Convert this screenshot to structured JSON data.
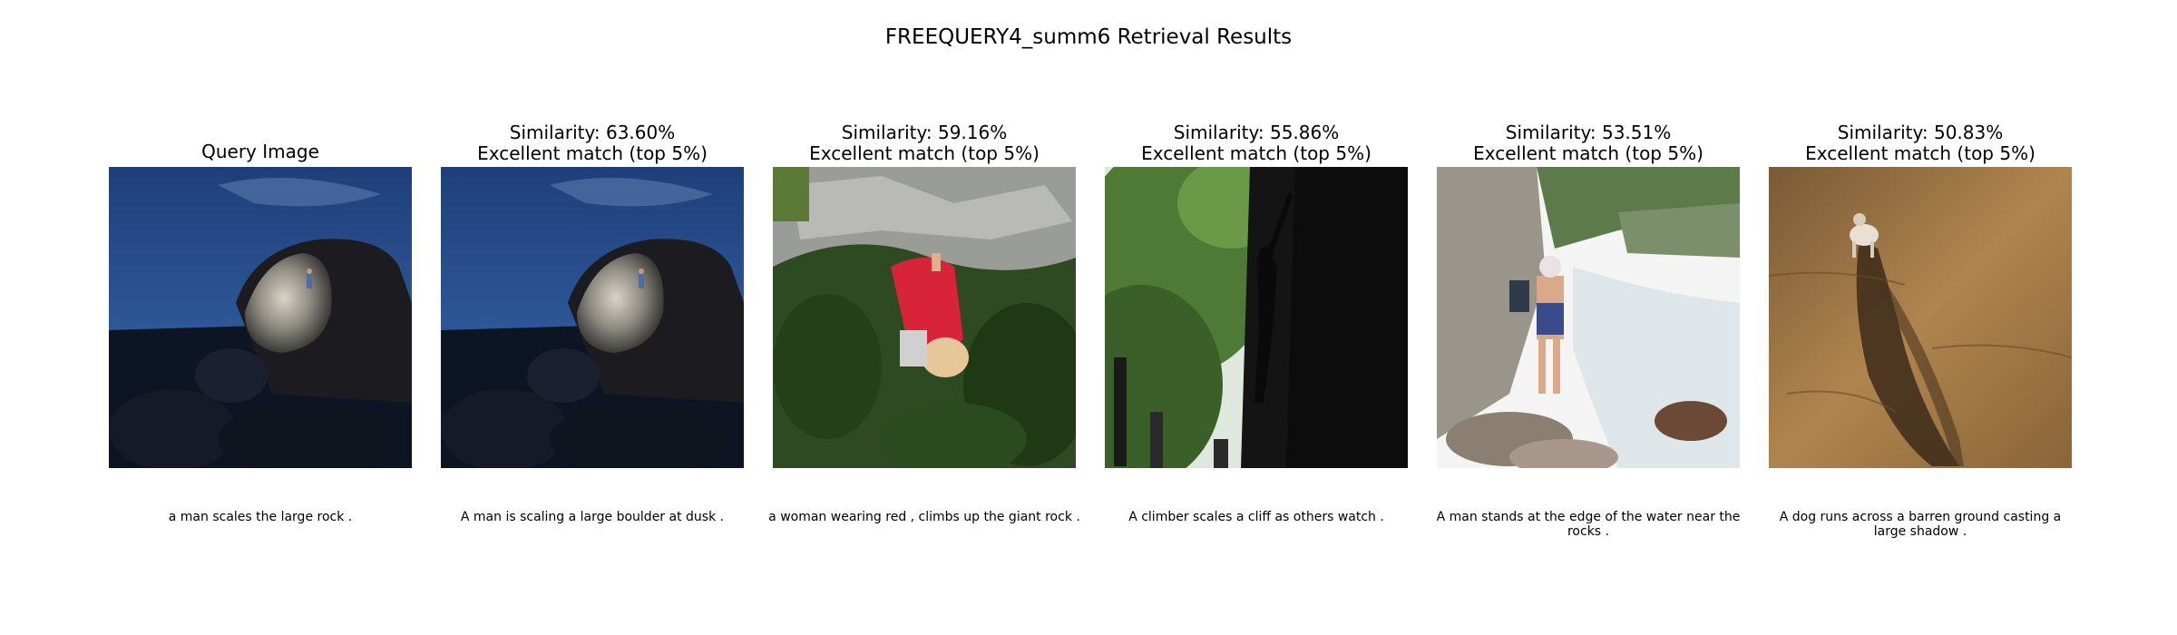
{
  "figure": {
    "title": "FREEQUERY4_summ6 Retrieval Results"
  },
  "query": {
    "title": "Query Image",
    "caption": "a man scales the large rock ."
  },
  "results": [
    {
      "similarity": "Similarity: 63.60%",
      "match": "Excellent match (top 5%)",
      "caption": "A man is scaling a large boulder at dusk ."
    },
    {
      "similarity": "Similarity: 59.16%",
      "match": "Excellent match (top 5%)",
      "caption": "a woman wearing red , climbs up the giant rock ."
    },
    {
      "similarity": "Similarity: 55.86%",
      "match": "Excellent match (top 5%)",
      "caption": "A climber scales a cliff as others watch ."
    },
    {
      "similarity": "Similarity: 53.51%",
      "match": "Excellent match (top 5%)",
      "caption": "A man stands at the edge of the water near the rocks ."
    },
    {
      "similarity": "Similarity: 50.83%",
      "match": "Excellent match (top 5%)",
      "caption": "A dog runs across a barren ground casting a large shadow ."
    }
  ]
}
